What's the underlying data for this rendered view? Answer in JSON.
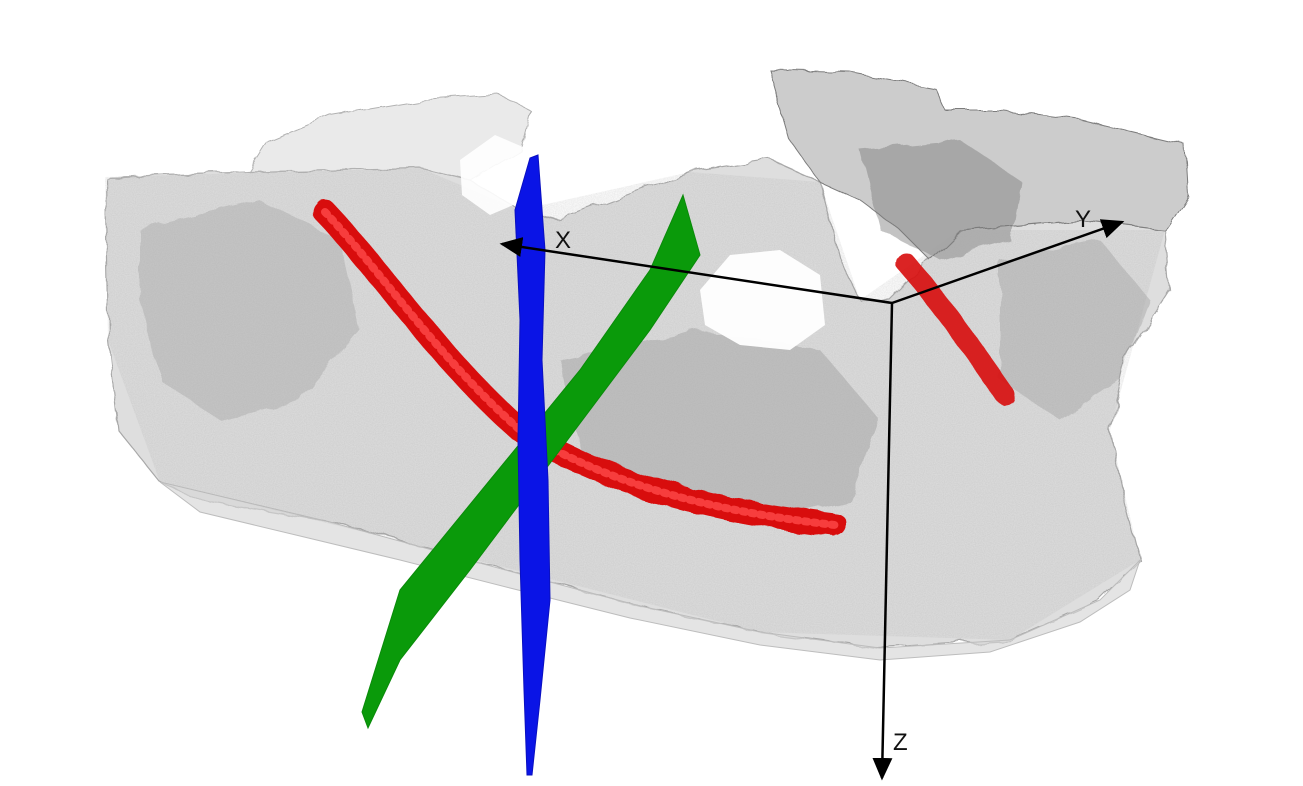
{
  "axes": {
    "x_label": "X",
    "y_label": "Y",
    "z_label": "Z",
    "color": "#000000"
  },
  "colors": {
    "bone": "#b4b4b4",
    "bone_dark": "#8c8c8c",
    "canal": "#e01010",
    "plane_axial": "#0a9a0a",
    "plane_sagittal": "#0a14e6"
  },
  "icons": {
    "axis_arrow": "arrowhead"
  }
}
